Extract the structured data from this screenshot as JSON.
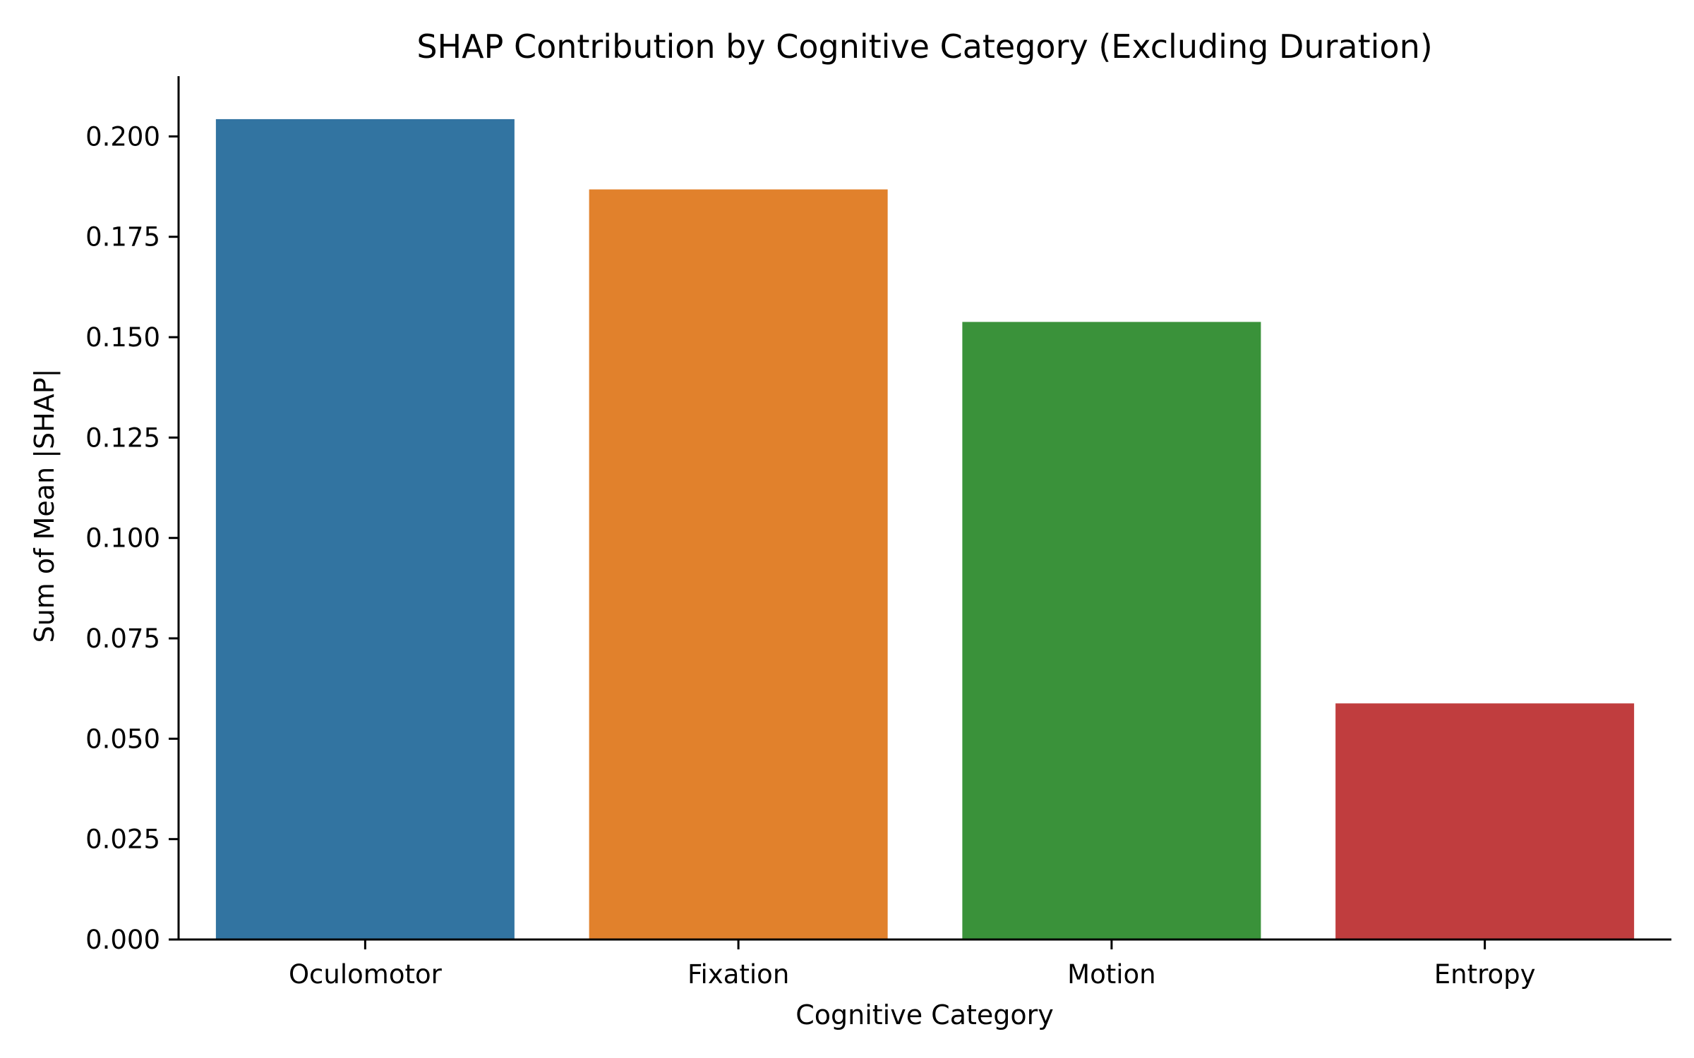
{
  "chart_data": {
    "type": "bar",
    "title": "SHAP Contribution by Cognitive Category (Excluding Duration)",
    "xlabel": "Cognitive Category",
    "ylabel": "Sum of Mean |SHAP|",
    "categories": [
      "Oculomotor",
      "Fixation",
      "Motion",
      "Entropy"
    ],
    "values": [
      0.2043,
      0.1868,
      0.1538,
      0.0588
    ],
    "colors": [
      "#3274a1",
      "#e1812c",
      "#3a923a",
      "#c03d3e"
    ],
    "ylim": [
      0,
      0.215
    ],
    "yticks": [
      0.0,
      0.025,
      0.05,
      0.075,
      0.1,
      0.125,
      0.15,
      0.175,
      0.2
    ],
    "ytick_labels": [
      "0.000",
      "0.025",
      "0.050",
      "0.075",
      "0.100",
      "0.125",
      "0.150",
      "0.175",
      "0.200"
    ],
    "grid": false,
    "legend": "none"
  }
}
